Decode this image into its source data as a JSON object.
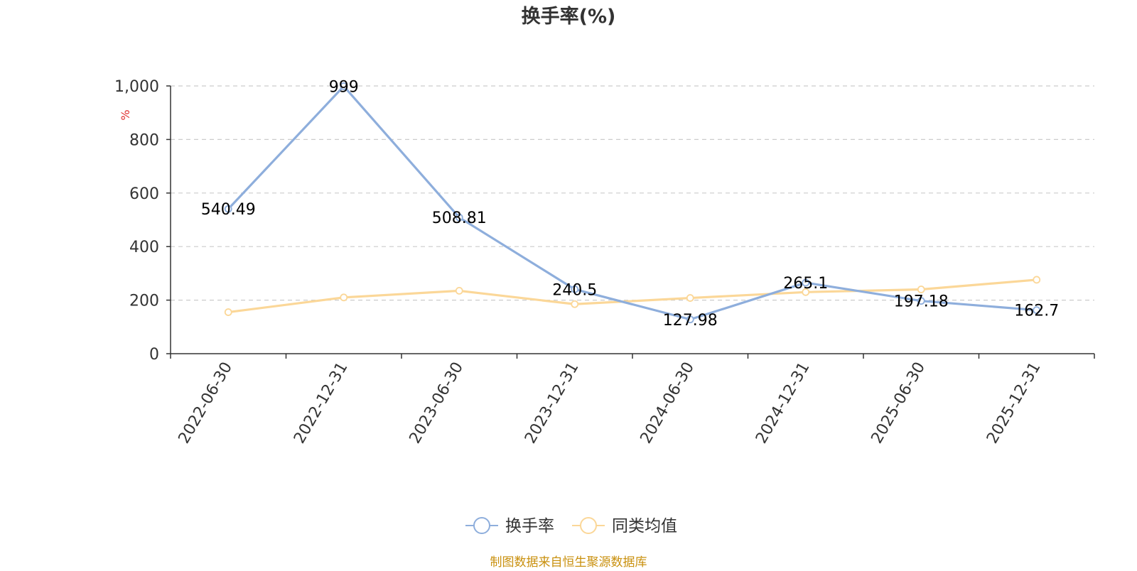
{
  "chart_data": {
    "type": "line",
    "title": "换手率(%)",
    "ylabel": "%",
    "categories": [
      "2022-06-30",
      "2022-12-31",
      "2023-06-30",
      "2023-12-31",
      "2024-06-30",
      "2024-12-31",
      "2025-06-30",
      "2025-12-31"
    ],
    "series": [
      {
        "name": "换手率",
        "values": [
          540.49,
          999,
          508.81,
          240.5,
          127.98,
          265.1,
          197.18,
          162.7
        ],
        "color": "#8eaedc",
        "show_labels": true
      },
      {
        "name": "同类均值",
        "values": [
          155,
          210,
          235,
          185,
          208,
          230,
          240,
          276
        ],
        "color": "#fbd798",
        "show_labels": false
      }
    ],
    "ylim": [
      0,
      1000
    ],
    "yticks": [
      0,
      200,
      400,
      600,
      800,
      1000
    ],
    "ytick_labels": [
      "0",
      "200",
      "400",
      "600",
      "800",
      "1,000"
    ],
    "grid": true,
    "legend": "bottom-center",
    "source_note": "制图数据来自恒生聚源数据库",
    "colors": {
      "title": "#333333",
      "axis": "#333333",
      "grid": "#cccccc",
      "ylabel": "#e03030",
      "source_note": "#c9900e"
    }
  }
}
